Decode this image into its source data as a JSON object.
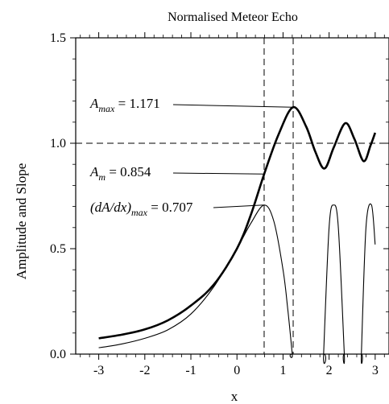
{
  "chart_data": {
    "type": "line",
    "title": "Normalised Meteor Echo",
    "xlabel": "x",
    "ylabel": "Amplitude and Slope",
    "xlim": [
      -3.5,
      3.3
    ],
    "ylim": [
      0,
      1.5
    ],
    "x_ticks": [
      -3,
      -2,
      -1,
      0,
      1,
      2,
      3
    ],
    "x_tick_labels": [
      "-3",
      "-2",
      "-1",
      "0",
      "1",
      "2",
      "3"
    ],
    "y_ticks": [
      0,
      0.5,
      1.0,
      1.5
    ],
    "y_tick_labels": [
      "0.0",
      "0.5",
      "1.0",
      "1.5"
    ],
    "grid": false,
    "reference_lines": {
      "horizontal": [
        1.0
      ],
      "vertical": [
        0.59,
        1.22
      ]
    },
    "series": [
      {
        "key": "amplitude",
        "x": [
          -3.0,
          -2.5,
          -2.0,
          -1.5,
          -1.0,
          -0.5,
          0.0,
          0.3,
          0.59,
          0.9,
          1.22,
          1.5,
          1.7,
          1.9,
          2.1,
          2.35,
          2.55,
          2.75,
          2.9,
          3.0
        ],
        "values": [
          0.075,
          0.092,
          0.117,
          0.16,
          0.23,
          0.33,
          0.5,
          0.66,
          0.854,
          1.04,
          1.171,
          1.08,
          0.96,
          0.88,
          0.98,
          1.095,
          1.02,
          0.915,
          0.99,
          1.05
        ]
      },
      {
        "key": "slope",
        "x": [
          -3.0,
          -2.5,
          -2.0,
          -1.5,
          -1.0,
          -0.5,
          0.0,
          0.3,
          0.59,
          0.8,
          1.0,
          1.1,
          1.2,
          1.2,
          1.88,
          1.88,
          2.0,
          2.1,
          2.2,
          2.33,
          2.33,
          2.7,
          2.7,
          2.8,
          2.92,
          3.0
        ],
        "values": [
          0.03,
          0.048,
          0.075,
          0.115,
          0.19,
          0.32,
          0.5,
          0.62,
          0.707,
          0.63,
          0.4,
          0.22,
          0.0,
          0.0,
          0.0,
          0.0,
          0.6,
          0.707,
          0.6,
          0.0,
          0.0,
          0.0,
          0.0,
          0.6,
          0.707,
          0.52
        ]
      }
    ],
    "annotations": [
      {
        "key": "amax",
        "text_main": "A",
        "text_sub": "max",
        "text_value": " = 1.171",
        "x": 1.22,
        "y": 1.171
      },
      {
        "key": "am",
        "text_main": "A",
        "text_sub": "m",
        "text_value": " = 0.854",
        "x": 0.59,
        "y": 0.854
      },
      {
        "key": "dadx",
        "text_main": "(dA/dx)",
        "text_sub": "max",
        "text_value": " = 0.707",
        "x": 0.59,
        "y": 0.707
      }
    ]
  }
}
